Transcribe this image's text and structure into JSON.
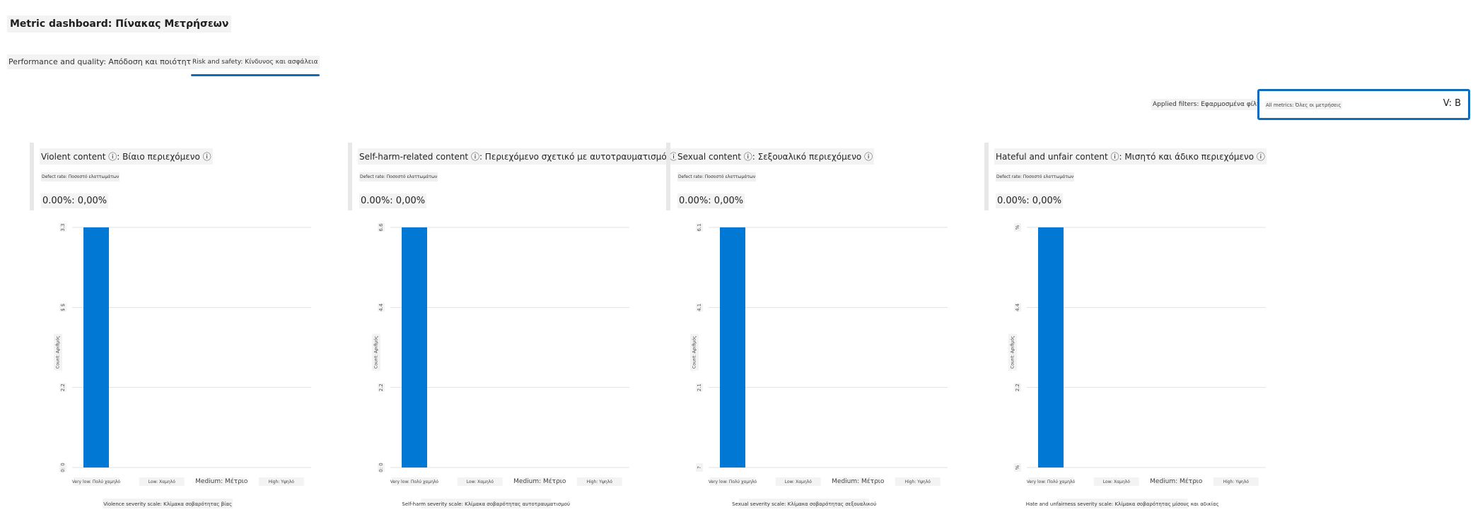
{
  "page": {
    "title": "Metric dashboard: Πίνακας Μετρήσεων"
  },
  "tabs": [
    {
      "label": "Performance and quality: Απόδοση και ποιότητα",
      "selected": false
    },
    {
      "label": "Risk and safety: Κίνδυνος και ασφάλεια",
      "selected": true
    }
  ],
  "filters": {
    "label": "Applied filters: Εφαρμοσμένα φίλτρα",
    "value": "All metrics: Όλες οι μετρήσεις",
    "chevron_icon": "chevron-down-icon",
    "chevron_text": "V: B"
  },
  "colors": {
    "accent": "#0f6cbd",
    "bar": "#0078d4",
    "grid": "#e1e1e1"
  },
  "cards": [
    {
      "title": "Violent content ⓘ: Βίαιο περιεχόμενο ⓘ",
      "subtitle": "Defect rate: Ποσοστό ελαττωμάτων",
      "value": "0.00%: 0,00%",
      "chart_data": {
        "type": "bar",
        "categories": [
          "Very low: Πολύ χαμηλό",
          "Low: Χαμηλό",
          "Medium: Μέτριο",
          "High: Υψηλό"
        ],
        "values": [
          3,
          0,
          0,
          0
        ],
        "ylim": [
          0,
          3
        ],
        "yticks": [
          "0: 0",
          "2.2",
          "$ $",
          "3.3"
        ],
        "ylabel": "Count: Αριθμός",
        "xlabel": "Violence severity scale: Κλίμακα σοβαρότητας βίας"
      }
    },
    {
      "title": "Self-harm-related content ⓘ: Περιεχόμενο σχετικό με αυτοτραυματισμό ⓘ",
      "subtitle": "Defect rate: Ποσοστό ελαττωμάτων",
      "value": "0.00%: 0,00%",
      "chart_data": {
        "type": "bar",
        "categories": [
          "Very low: Πολύ χαμηλό",
          "Low: Χαμηλό",
          "Medium: Μέτριο",
          "High: Υψηλό"
        ],
        "values": [
          3,
          0,
          0,
          0
        ],
        "ylim": [
          0,
          3
        ],
        "yticks": [
          "0: 0",
          "2.2",
          "4.4",
          "6.6"
        ],
        "ylabel": "Count: Αριθμός",
        "xlabel": "Self-harm severity scale: Κλίμακα σοβαρότητας αυτοτραυματισμού"
      }
    },
    {
      "title": "Sexual content ⓘ: Σεξουαλικό περιεχόμενο ⓘ",
      "subtitle": "Defect rate: Ποσοστό ελαττωμάτων",
      "value": "0.00%: 0,00%",
      "chart_data": {
        "type": "bar",
        "categories": [
          "Very low: Πολύ χαμηλό",
          "Low: Χαμηλό",
          "Medium: Μέτριο",
          "High: Υψηλό"
        ],
        "values": [
          3,
          0,
          0,
          0
        ],
        "ylim": [
          0,
          3
        ],
        "yticks": [
          "?",
          "2.1",
          "4.1",
          "6.1"
        ],
        "ylabel": "Count: Αριθμός",
        "xlabel": "Sexual severity scale: Κλίμακα σοβαρότητας σεξουαλικού"
      }
    },
    {
      "title": "Hateful and unfair content ⓘ: Μισητό και άδικο περιεχόμενο ⓘ",
      "subtitle": "Defect rate: Ποσοστό ελαττωμάτων",
      "value": "0.00%: 0,00%",
      "chart_data": {
        "type": "bar",
        "categories": [
          "Very low: Πολύ χαμηλό",
          "Low: Χαμηλό",
          "Medium: Μέτριο",
          "High: Υψηλό"
        ],
        "values": [
          3,
          0,
          0,
          0
        ],
        "ylim": [
          0,
          3
        ],
        "yticks": [
          "%",
          "2.2",
          "4.4",
          "%"
        ],
        "ylabel": "Count: Αριθμός",
        "xlabel": "Hate and unfairness severity scale: Κλίμακα σοβαρότητας μίσους και αδικίας"
      }
    }
  ]
}
